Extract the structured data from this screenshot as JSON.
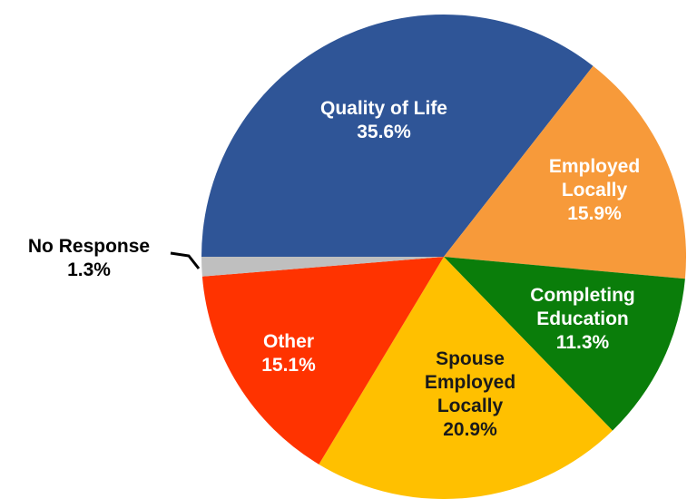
{
  "chart_data": {
    "type": "pie",
    "categories": [
      "Quality of Life",
      "Employed Locally",
      "Completing Education",
      "Spouse Employed Locally",
      "Other",
      "No Response"
    ],
    "values": [
      35.6,
      15.9,
      11.3,
      20.9,
      15.1,
      1.3
    ],
    "value_labels": [
      "35.6%",
      "15.9%",
      "11.3%",
      "20.9%",
      "15.1%",
      "1.3%"
    ],
    "colors": [
      "#2f5597",
      "#f79a3a",
      "#0a7d0a",
      "#ffc000",
      "#ff3300",
      "#bfbfbf"
    ]
  }
}
